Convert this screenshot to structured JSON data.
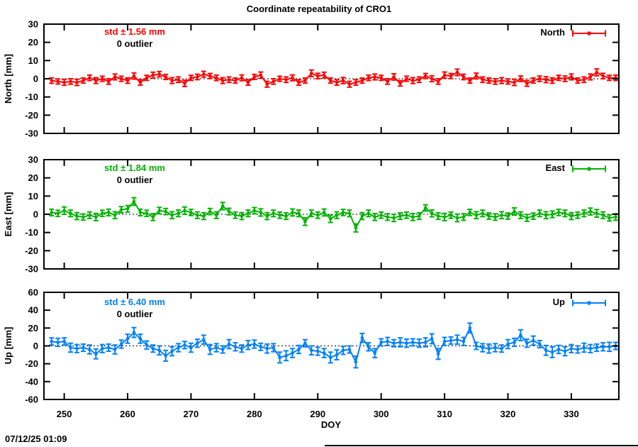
{
  "title": "Coordinate repeatability of CRO1",
  "timestamp": "07/12/25 01:09",
  "xlabel": "DOY",
  "x_ticks": [
    250,
    260,
    270,
    280,
    290,
    300,
    310,
    320,
    330
  ],
  "panels": [
    {
      "id": "north",
      "ylabel": "North [mm]",
      "legend": "North",
      "std_label": "std ± 1.56 mm",
      "outlier_label": "0 outlier",
      "color": "#ff0000",
      "y_ticks": [
        30,
        20,
        10,
        0,
        -10,
        -20,
        -30
      ]
    },
    {
      "id": "east",
      "ylabel": "East [mm]",
      "legend": "East",
      "std_label": "std ± 1.84 mm",
      "outlier_label": "0 outlier",
      "color": "#00b400",
      "y_ticks": [
        30,
        20,
        10,
        0,
        -10,
        -20,
        -30
      ]
    },
    {
      "id": "up",
      "ylabel": "Up [mm]",
      "legend": "Up",
      "std_label": "std ± 6.40 mm",
      "outlier_label": "0 outlier",
      "color": "#0080ff",
      "y_ticks": [
        60,
        40,
        20,
        0,
        -20,
        -40,
        -60
      ]
    }
  ],
  "chart_data": {
    "type": "line",
    "subtype": "errorbars-with-points",
    "title": "Coordinate repeatability of CRO1",
    "xlabel": "DOY",
    "xlim": [
      246.8,
      337.5
    ],
    "grid": false,
    "zero_line": "dotted",
    "legend_position": "top-right-inside-each-panel",
    "x": [
      248,
      249,
      250,
      251,
      252,
      253,
      254,
      255,
      256,
      257,
      258,
      259,
      260,
      261,
      262,
      263,
      264,
      265,
      266,
      267,
      268,
      269,
      270,
      271,
      272,
      273,
      274,
      275,
      276,
      277,
      278,
      279,
      280,
      281,
      282,
      283,
      284,
      285,
      286,
      287,
      288,
      289,
      290,
      291,
      292,
      293,
      294,
      295,
      296,
      297,
      298,
      299,
      300,
      301,
      302,
      303,
      304,
      305,
      306,
      307,
      308,
      309,
      310,
      311,
      312,
      313,
      314,
      315,
      316,
      317,
      318,
      319,
      320,
      321,
      322,
      323,
      324,
      325,
      326,
      327,
      328,
      329,
      330,
      331,
      332,
      333,
      334,
      335,
      336,
      337
    ],
    "series": [
      {
        "name": "North",
        "ylabel": "North [mm]",
        "std_mm": 1.56,
        "outliers": 0,
        "ylim": [
          -30,
          30
        ],
        "values": [
          -1,
          -1.5,
          -2,
          -1.5,
          -2,
          -1,
          0.5,
          -1,
          0,
          -1.5,
          1,
          0,
          -1,
          1.5,
          -2,
          0.5,
          2,
          2.5,
          1,
          -1,
          -0.5,
          -2.5,
          0.5,
          1,
          2.5,
          1.5,
          0.5,
          -1,
          -0.5,
          -1,
          0.5,
          -2,
          1,
          2,
          -3,
          -1.5,
          0,
          -0.5,
          0.5,
          -2,
          -1,
          3,
          1.5,
          2,
          -1,
          -2,
          -1,
          -3,
          -2,
          -1,
          0.5,
          1,
          0.5,
          -1.5,
          1,
          -2.5,
          0,
          -1,
          -0.5,
          1.5,
          0,
          -1.5,
          2,
          1.5,
          3.5,
          1,
          -1,
          1.5,
          -0.5,
          -1,
          -1.5,
          -1,
          -1.5,
          -2,
          0,
          -2.5,
          -1,
          0,
          -0.5,
          -1,
          0.5,
          0,
          1,
          -1,
          -0.5,
          1,
          3.5,
          1.5,
          0.5,
          0.5
        ],
        "errors": [
          1.5,
          1.4,
          1.6,
          1.5,
          1.7,
          1.4,
          1.5,
          1.6,
          1.4,
          1.5,
          1.6,
          1.4,
          1.5,
          1.7,
          1.5,
          1.4,
          1.6,
          1.5,
          1.4,
          1.6,
          1.5,
          1.7,
          1.4,
          1.5,
          1.6,
          1.4,
          1.5,
          1.6,
          1.5,
          1.4,
          1.6,
          1.5,
          1.4,
          1.7,
          1.6,
          1.5,
          1.4,
          1.5,
          1.6,
          1.5,
          1.4,
          1.8,
          1.5,
          1.6,
          1.4,
          1.5,
          1.7,
          1.6,
          1.5,
          1.4,
          1.5,
          1.6,
          1.4,
          1.5,
          1.7,
          1.5,
          1.4,
          1.6,
          1.5,
          1.4,
          1.6,
          1.5,
          1.7,
          1.4,
          1.8,
          1.5,
          1.4,
          1.6,
          1.5,
          1.4,
          1.5,
          1.6,
          1.4,
          1.7,
          1.5,
          1.6,
          1.4,
          1.5,
          1.6,
          1.5,
          1.4,
          1.5,
          1.6,
          1.4,
          1.5,
          1.6,
          1.9,
          1.5,
          1.4,
          1.5
        ]
      },
      {
        "name": "East",
        "ylabel": "East [mm]",
        "std_mm": 1.84,
        "outliers": 0,
        "ylim": [
          -30,
          30
        ],
        "values": [
          1,
          0.5,
          2,
          0.5,
          -1,
          -1.5,
          -0.5,
          -1.5,
          0.5,
          1,
          -0.5,
          2.5,
          3,
          7,
          1,
          0.5,
          -1.5,
          2,
          1.5,
          -0.5,
          0.5,
          2,
          1,
          -0.5,
          -1,
          1.5,
          -0.5,
          4.5,
          1.5,
          -0.5,
          -1,
          0.5,
          2,
          1,
          -1,
          0.5,
          -0.5,
          -1,
          1,
          0.5,
          -4,
          0.5,
          -0.5,
          1,
          -2.5,
          -0.5,
          1,
          0.5,
          -7.5,
          -1,
          0.5,
          -1.5,
          -0.5,
          -1.5,
          -2,
          -1,
          -0.5,
          -1.5,
          -1,
          3.5,
          0.5,
          -1,
          -1.5,
          -0.5,
          -2,
          -1.5,
          1,
          -0.5,
          0.5,
          -1,
          -1.5,
          -0.5,
          -1,
          1.5,
          -0.5,
          -2,
          -1,
          0.5,
          -0.5,
          0,
          1,
          0.5,
          -1,
          -0.5,
          0.5,
          1.5,
          0.5,
          -0.5,
          -2,
          -1.5
        ],
        "errors": [
          1.8,
          1.7,
          2.0,
          1.8,
          1.9,
          1.7,
          1.8,
          2.0,
          1.7,
          1.8,
          1.9,
          1.7,
          1.8,
          2.1,
          1.8,
          1.7,
          1.9,
          1.8,
          1.7,
          1.9,
          1.8,
          2.0,
          1.7,
          1.8,
          1.9,
          1.7,
          1.8,
          2.0,
          1.8,
          1.7,
          1.9,
          1.8,
          1.7,
          2.0,
          1.9,
          1.8,
          1.7,
          1.8,
          1.9,
          1.8,
          2.1,
          1.8,
          1.7,
          1.9,
          2.0,
          1.8,
          1.7,
          1.8,
          2.2,
          1.9,
          1.8,
          1.9,
          1.7,
          1.8,
          2.0,
          1.8,
          1.7,
          1.9,
          1.8,
          1.7,
          1.9,
          1.8,
          2.0,
          1.7,
          2.1,
          1.8,
          1.7,
          1.9,
          1.8,
          1.7,
          1.8,
          1.9,
          1.7,
          2.0,
          1.8,
          1.9,
          1.7,
          1.8,
          1.9,
          1.8,
          1.7,
          1.8,
          1.9,
          1.7,
          1.8,
          1.9,
          2.1,
          1.8,
          1.7,
          1.8
        ]
      },
      {
        "name": "Up",
        "ylabel": "Up [mm]",
        "std_mm": 6.4,
        "outliers": 0,
        "ylim": [
          -60,
          60
        ],
        "values": [
          5,
          4,
          5,
          -2,
          -3,
          -2,
          -4,
          -9,
          -3,
          -2,
          -4,
          2,
          8,
          15,
          8,
          1,
          -3,
          -5,
          -11,
          -6,
          -2,
          1,
          -2,
          3,
          7,
          -4,
          -2,
          -4,
          2,
          -1,
          -3,
          1,
          2,
          -1,
          -3,
          -2,
          -13,
          -11,
          -8,
          -4,
          3,
          -5,
          -6,
          -8,
          -13,
          -10,
          -5,
          -4,
          -18,
          9,
          -1,
          -8,
          4,
          5,
          3,
          4,
          3,
          4,
          3,
          4,
          8,
          -9,
          5,
          6,
          7,
          5,
          20,
          0,
          -2,
          -3,
          -2,
          -3,
          2,
          4,
          12,
          3,
          6,
          2,
          -5,
          -7,
          -4,
          -6,
          -3,
          -4,
          -2,
          -3,
          -2,
          -1,
          -1,
          0
        ],
        "errors": [
          4,
          4.5,
          4,
          5,
          4.5,
          4,
          5,
          5.5,
          4.5,
          4,
          5,
          4.5,
          5,
          5.5,
          5,
          4.5,
          4,
          5,
          6,
          5,
          4.5,
          4,
          5,
          4.5,
          5,
          5.5,
          4.5,
          4,
          5,
          4.5,
          4,
          5,
          4.5,
          4,
          5,
          4.5,
          6,
          5.5,
          5,
          4.5,
          4,
          5,
          4.5,
          5,
          6,
          5.5,
          4.5,
          4,
          6.5,
          5,
          4.5,
          5,
          4,
          4.5,
          4,
          5,
          4.5,
          4,
          4.5,
          5,
          5.5,
          6,
          4.5,
          4,
          5,
          4.5,
          5.5,
          4,
          4.5,
          5,
          4.5,
          4,
          5,
          4.5,
          6,
          4.5,
          5,
          4,
          5.5,
          6,
          4.5,
          5,
          4.5,
          4,
          5,
          4.5,
          4,
          4.5,
          5,
          4
        ]
      }
    ]
  }
}
